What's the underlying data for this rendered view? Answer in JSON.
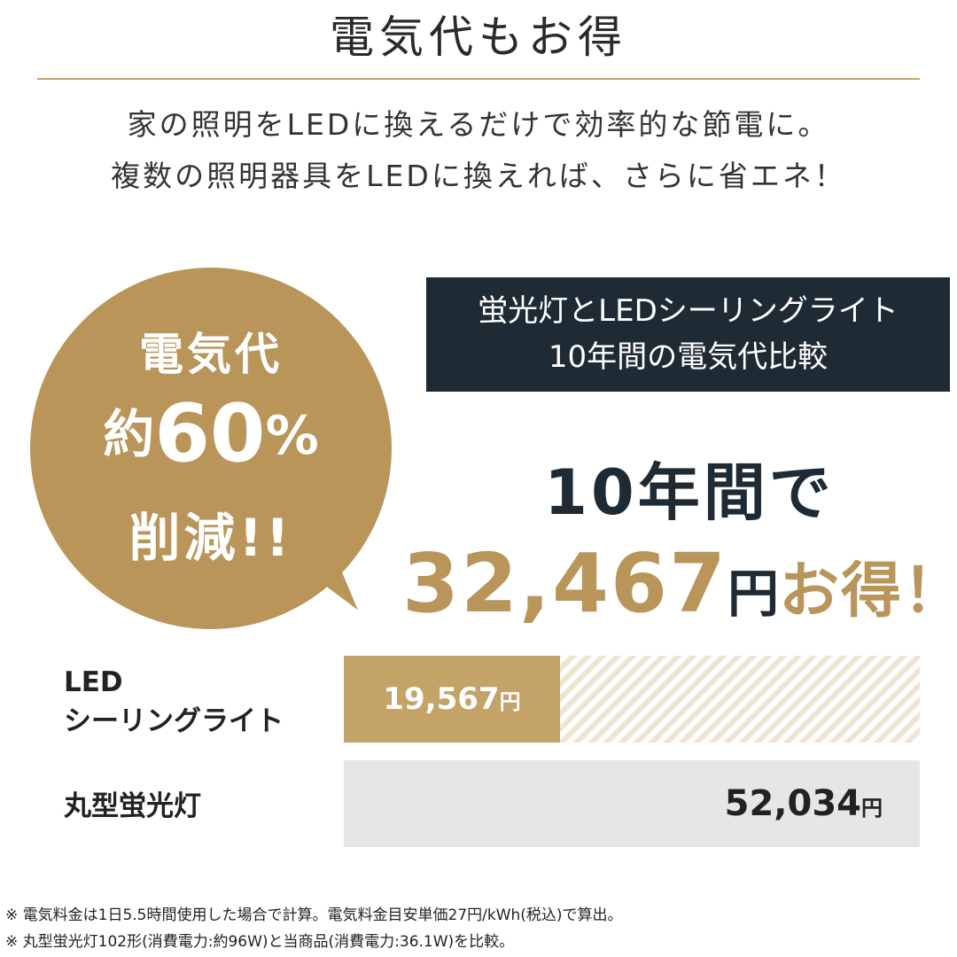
{
  "heading": "電気代もお得",
  "intro": {
    "line1": "家の照明をLEDに換えるだけで効率的な節電に。",
    "line2": "複数の照明器具をLEDに換えれば、さらに省エネ！"
  },
  "bubble": {
    "line1": "電気代",
    "prefix": "約",
    "value": "60",
    "unit": "%",
    "line3": "削減!!"
  },
  "comparison_box": {
    "line1": "蛍光灯とLEDシーリングライト",
    "line2": "10年間の電気代比較"
  },
  "savings": {
    "intro": "10年間で",
    "amount": "32,467",
    "yen": "円",
    "suffix": "お得！"
  },
  "bars": [
    {
      "label_line1": "LED",
      "label_line2": "シーリングライト",
      "amount": "19,567",
      "unit": "円",
      "fraction_of_max": 0.376
    },
    {
      "label": "丸型蛍光灯",
      "amount": "52,034",
      "unit": "円",
      "fraction_of_max": 1.0
    }
  ],
  "notes": [
    "※ 電気料金は1日5.5時間使用した場合で計算。電気料金目安単価27円/kWh(税込)で算出。",
    "※ 丸型蛍光灯102形(消費電力:約96W)と当商品(消費電力:36.1W)を比較。"
  ],
  "colors": {
    "gold": "#b9955a",
    "navy": "#1e2a34",
    "gray": "#e6e6e6"
  }
}
